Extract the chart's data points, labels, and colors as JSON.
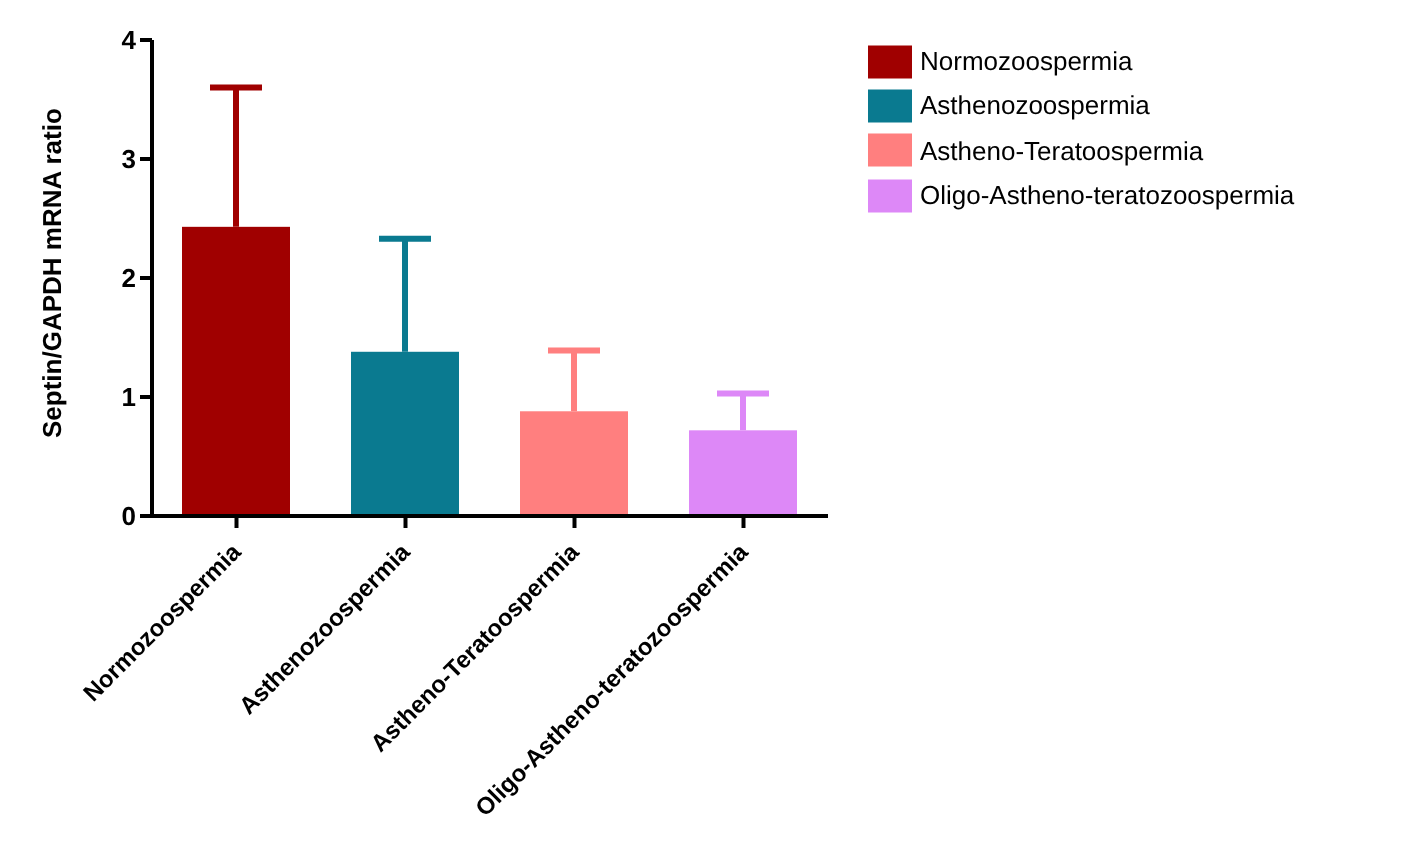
{
  "chart_data": {
    "type": "bar",
    "ylabel": "Septin/GAPDH mRNA ratio",
    "categories": [
      "Normozoospermia",
      "Asthenozoospermia",
      "Astheno-Teratoospermia",
      "Oligo-Astheno-teratozoospermia"
    ],
    "series": [
      {
        "name": "Normozoospermia",
        "color": "#a00000",
        "values": [
          2.43,
          null,
          null,
          null
        ],
        "errors": [
          [
            2.43,
            3.6
          ],
          null,
          null,
          null
        ]
      },
      {
        "name": "Asthenozoospermia",
        "color": "#0a7a90",
        "values": [
          null,
          1.38,
          null,
          null
        ],
        "errors": [
          null,
          [
            1.38,
            2.33
          ],
          null,
          null
        ]
      },
      {
        "name": "Astheno-Teratoospermia",
        "color": "#ff7f7f",
        "values": [
          null,
          null,
          0.88,
          null
        ],
        "errors": [
          null,
          null,
          [
            0.88,
            1.39
          ],
          null
        ]
      },
      {
        "name": "Oligo-Astheno-teratozoospermia",
        "color": "#dd88f7",
        "values": [
          null,
          null,
          null,
          0.72
        ],
        "errors": [
          null,
          null,
          null,
          [
            0.72,
            1.03
          ]
        ]
      }
    ],
    "ylim": [
      0,
      4
    ],
    "yticks": [
      0,
      1,
      2,
      3,
      4
    ],
    "grid": false,
    "legend": "top right"
  }
}
